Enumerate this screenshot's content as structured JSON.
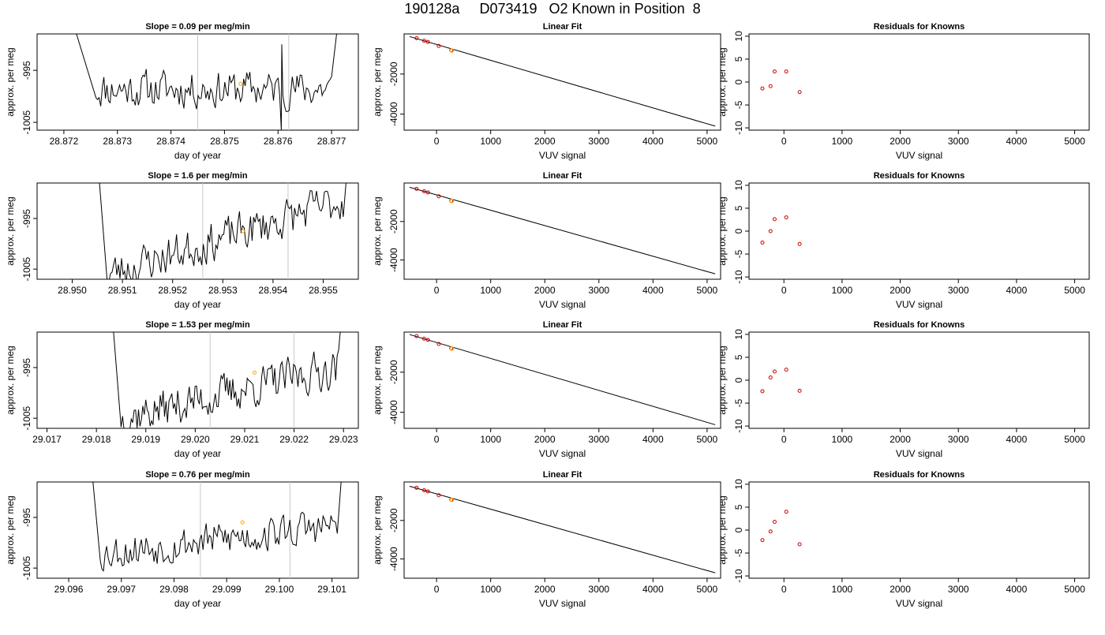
{
  "figure": {
    "title": "190128a     D073419   O2 Known in Position  8"
  },
  "colors": {
    "trace": "#000000",
    "highlight_point": "#ffa500",
    "known_points": "#cc0000",
    "marker_lines": "#c8c8c8",
    "frame": "#000000"
  },
  "chart_data": [
    {
      "type": "line",
      "row": 1,
      "panel": "time-series",
      "title": "Slope =  0.09  per meg/min",
      "xlabel": "day of year",
      "ylabel": "approx. per meg",
      "xlim": [
        28.8715,
        28.8775
      ],
      "ylim": [
        -1006.5,
        -988
      ],
      "x_ticks": [
        "28.872",
        "28.873",
        "28.874",
        "28.875",
        "28.876",
        "28.877"
      ],
      "x_tick_values": [
        28.872,
        28.873,
        28.874,
        28.875,
        28.876,
        28.877
      ],
      "y_ticks": [
        "-1005",
        "-995"
      ],
      "y_tick_values": [
        -1005,
        -995
      ],
      "vlines": [
        28.8745,
        28.8762
      ],
      "highlight": {
        "x": 28.8753,
        "y": -997.6
      },
      "trace": {
        "start_x": 28.8726,
        "end_x": 28.877,
        "base": -998.6,
        "drift_per_day": 0,
        "rise_x": 28.8717,
        "rise_y": -970,
        "tail_x": 28.8773,
        "tail_y": -970,
        "noise_amp": 2.0,
        "seed": 11,
        "spike": {
          "x": 28.87605,
          "low": -1006.5,
          "high": -990
        }
      }
    },
    {
      "type": "scatter",
      "row": 1,
      "panel": "linear-fit",
      "title": "Linear Fit",
      "xlabel": "VUV signal",
      "ylabel": "approx. per meg",
      "xlim": [
        -600,
        5250
      ],
      "ylim": [
        -4800,
        0
      ],
      "x_ticks": [
        "0",
        "1000",
        "2000",
        "3000",
        "4000",
        "5000"
      ],
      "x_tick_values": [
        0,
        1000,
        2000,
        3000,
        4000,
        5000
      ],
      "y_ticks": [
        "-4000",
        "-2000"
      ],
      "y_tick_values": [
        -4000,
        -2000
      ],
      "points": [
        {
          "x": -370,
          "y": -210
        },
        {
          "x": -230,
          "y": -340
        },
        {
          "x": -160,
          "y": -400
        },
        {
          "x": 40,
          "y": -600
        },
        {
          "x": 270,
          "y": -820
        }
      ],
      "highlight": {
        "x": 280,
        "y": -830
      },
      "fit_line": {
        "x": [
          -500,
          5150
        ],
        "y": [
          -130,
          -4600
        ]
      }
    },
    {
      "type": "scatter",
      "row": 1,
      "panel": "residuals",
      "title": "Residuals for Knowns",
      "xlabel": "VUV signal",
      "ylabel": "approx. per meg",
      "xlim": [
        -600,
        5250
      ],
      "ylim": [
        -10.5,
        10.5
      ],
      "x_ticks": [
        "0",
        "1000",
        "2000",
        "3000",
        "4000",
        "5000"
      ],
      "x_tick_values": [
        0,
        1000,
        2000,
        3000,
        4000,
        5000
      ],
      "y_ticks": [
        "-10",
        "-5",
        "0",
        "5",
        "10"
      ],
      "y_tick_values": [
        -10,
        -5,
        0,
        5,
        10
      ],
      "points": [
        {
          "x": -370,
          "y": -1.4
        },
        {
          "x": -230,
          "y": -0.9
        },
        {
          "x": -160,
          "y": 2.3
        },
        {
          "x": 40,
          "y": 2.3
        },
        {
          "x": 270,
          "y": -2.2
        }
      ]
    },
    {
      "type": "line",
      "row": 2,
      "panel": "time-series",
      "title": "Slope =  1.6  per meg/min",
      "xlabel": "day of year",
      "ylabel": "approx. per meg",
      "xlim": [
        28.9493,
        28.9557
      ],
      "ylim": [
        -1007,
        -988
      ],
      "x_ticks": [
        "28.950",
        "28.951",
        "28.952",
        "28.953",
        "28.954",
        "28.955"
      ],
      "x_tick_values": [
        28.95,
        28.951,
        28.952,
        28.953,
        28.954,
        28.955
      ],
      "y_ticks": [
        "-1005",
        "-995"
      ],
      "y_tick_values": [
        -1005,
        -995
      ],
      "vlines": [
        28.9526,
        28.9543
      ],
      "highlight": {
        "x": 28.9534,
        "y": -997.5
      },
      "trace": {
        "start_x": 28.9507,
        "end_x": 28.9554,
        "base": -1006,
        "drift_per_day": 3100,
        "rise_x": 28.9504,
        "rise_y": -970,
        "tail_x": 28.9556,
        "tail_y": -970,
        "noise_amp": 2.2,
        "seed": 23
      }
    },
    {
      "type": "scatter",
      "row": 2,
      "panel": "linear-fit",
      "title": "Linear Fit",
      "xlabel": "VUV signal",
      "ylabel": "approx. per meg",
      "xlim": [
        -600,
        5250
      ],
      "ylim": [
        -5000,
        0
      ],
      "x_ticks": [
        "0",
        "1000",
        "2000",
        "3000",
        "4000",
        "5000"
      ],
      "x_tick_values": [
        0,
        1000,
        2000,
        3000,
        4000,
        5000
      ],
      "y_ticks": [
        "-4000",
        "-2000"
      ],
      "y_tick_values": [
        -4000,
        -2000
      ],
      "points": [
        {
          "x": -370,
          "y": -300
        },
        {
          "x": -230,
          "y": -430
        },
        {
          "x": -160,
          "y": -490
        },
        {
          "x": 40,
          "y": -690
        },
        {
          "x": 270,
          "y": -920
        }
      ],
      "highlight": {
        "x": 280,
        "y": -930
      },
      "fit_line": {
        "x": [
          -500,
          5150
        ],
        "y": [
          -220,
          -4720
        ]
      }
    },
    {
      "type": "scatter",
      "row": 2,
      "panel": "residuals",
      "title": "Residuals for Knowns",
      "xlabel": "VUV signal",
      "ylabel": "approx. per meg",
      "xlim": [
        -600,
        5250
      ],
      "ylim": [
        -10.5,
        10.5
      ],
      "x_ticks": [
        "0",
        "1000",
        "2000",
        "3000",
        "4000",
        "5000"
      ],
      "x_tick_values": [
        0,
        1000,
        2000,
        3000,
        4000,
        5000
      ],
      "y_ticks": [
        "-10",
        "-5",
        "0",
        "5",
        "10"
      ],
      "y_tick_values": [
        -10,
        -5,
        0,
        5,
        10
      ],
      "points": [
        {
          "x": -370,
          "y": -2.5
        },
        {
          "x": -230,
          "y": 0.0
        },
        {
          "x": -160,
          "y": 2.6
        },
        {
          "x": 40,
          "y": 3.0
        },
        {
          "x": 270,
          "y": -2.8
        }
      ]
    },
    {
      "type": "line",
      "row": 3,
      "panel": "time-series",
      "title": "Slope =  1.53  per meg/min",
      "xlabel": "day of year",
      "ylabel": "approx. per meg",
      "xlim": [
        29.0168,
        29.0233
      ],
      "ylim": [
        -1007,
        -988
      ],
      "x_ticks": [
        "29.017",
        "29.018",
        "29.019",
        "29.020",
        "29.021",
        "29.022",
        "29.023"
      ],
      "x_tick_values": [
        29.017,
        29.018,
        29.019,
        29.02,
        29.021,
        29.022,
        29.023
      ],
      "y_ticks": [
        "-1005",
        "-995"
      ],
      "y_tick_values": [
        -1005,
        -995
      ],
      "vlines": [
        29.0203,
        29.022
      ],
      "highlight": {
        "x": 29.0212,
        "y": -996
      },
      "trace": {
        "start_x": 29.0185,
        "end_x": 29.0229,
        "base": -1005,
        "drift_per_day": 2300,
        "rise_x": 29.0182,
        "rise_y": -970,
        "tail_x": 29.0231,
        "tail_y": -970,
        "noise_amp": 2.2,
        "seed": 37
      }
    },
    {
      "type": "scatter",
      "row": 3,
      "panel": "linear-fit",
      "title": "Linear Fit",
      "xlabel": "VUV signal",
      "ylabel": "approx. per meg",
      "xlim": [
        -600,
        5250
      ],
      "ylim": [
        -4800,
        0
      ],
      "x_ticks": [
        "0",
        "1000",
        "2000",
        "3000",
        "4000",
        "5000"
      ],
      "x_tick_values": [
        0,
        1000,
        2000,
        3000,
        4000,
        5000
      ],
      "y_ticks": [
        "-4000",
        "-2000"
      ],
      "y_tick_values": [
        -4000,
        -2000
      ],
      "points": [
        {
          "x": -370,
          "y": -200
        },
        {
          "x": -230,
          "y": -330
        },
        {
          "x": -160,
          "y": -390
        },
        {
          "x": 40,
          "y": -590
        },
        {
          "x": 270,
          "y": -810
        }
      ],
      "highlight": {
        "x": 280,
        "y": -820
      },
      "fit_line": {
        "x": [
          -500,
          5150
        ],
        "y": [
          -120,
          -4620
        ]
      }
    },
    {
      "type": "scatter",
      "row": 3,
      "panel": "residuals",
      "title": "Residuals for Knowns",
      "xlabel": "VUV signal",
      "ylabel": "approx. per meg",
      "xlim": [
        -600,
        5250
      ],
      "ylim": [
        -10.5,
        10.5
      ],
      "x_ticks": [
        "0",
        "1000",
        "2000",
        "3000",
        "4000",
        "5000"
      ],
      "x_tick_values": [
        0,
        1000,
        2000,
        3000,
        4000,
        5000
      ],
      "y_ticks": [
        "-10",
        "-5",
        "0",
        "5",
        "10"
      ],
      "y_tick_values": [
        -10,
        -5,
        0,
        5,
        10
      ],
      "points": [
        {
          "x": -370,
          "y": -2.4
        },
        {
          "x": -230,
          "y": 0.6
        },
        {
          "x": -160,
          "y": 1.9
        },
        {
          "x": 40,
          "y": 2.3
        },
        {
          "x": 270,
          "y": -2.3
        }
      ]
    },
    {
      "type": "line",
      "row": 4,
      "panel": "time-series",
      "title": "Slope =  0.76  per meg/min",
      "xlabel": "day of year",
      "ylabel": "approx. per meg",
      "xlim": [
        29.0954,
        29.1015
      ],
      "ylim": [
        -1007,
        -988
      ],
      "x_ticks": [
        "29.096",
        "29.097",
        "29.098",
        "29.099",
        "29.100",
        "29.101"
      ],
      "x_tick_values": [
        29.096,
        29.097,
        29.098,
        29.099,
        29.1,
        29.101
      ],
      "y_ticks": [
        "-1005",
        "-995"
      ],
      "y_tick_values": [
        -1005,
        -995
      ],
      "vlines": [
        29.0985,
        29.1002
      ],
      "highlight": {
        "x": 29.0993,
        "y": -996
      },
      "trace": {
        "start_x": 29.0966,
        "end_x": 29.1011,
        "base": -1002,
        "drift_per_day": 1200,
        "rise_x": 29.0963,
        "rise_y": -970,
        "tail_x": 29.1013,
        "tail_y": -970,
        "noise_amp": 2.0,
        "seed": 53
      }
    },
    {
      "type": "scatter",
      "row": 4,
      "panel": "linear-fit",
      "title": "Linear Fit",
      "xlabel": "VUV signal",
      "ylabel": "approx. per meg",
      "xlim": [
        -600,
        5250
      ],
      "ylim": [
        -5000,
        0
      ],
      "x_ticks": [
        "0",
        "1000",
        "2000",
        "3000",
        "4000",
        "5000"
      ],
      "x_tick_values": [
        0,
        1000,
        2000,
        3000,
        4000,
        5000
      ],
      "y_ticks": [
        "-4000",
        "-2000"
      ],
      "y_tick_values": [
        -4000,
        -2000
      ],
      "points": [
        {
          "x": -370,
          "y": -300
        },
        {
          "x": -230,
          "y": -430
        },
        {
          "x": -160,
          "y": -490
        },
        {
          "x": 40,
          "y": -690
        },
        {
          "x": 270,
          "y": -920
        }
      ],
      "highlight": {
        "x": 280,
        "y": -930
      },
      "fit_line": {
        "x": [
          -500,
          5150
        ],
        "y": [
          -220,
          -4720
        ]
      }
    },
    {
      "type": "scatter",
      "row": 4,
      "panel": "residuals",
      "title": "Residuals for Knowns",
      "xlabel": "VUV signal",
      "ylabel": "approx. per meg",
      "xlim": [
        -600,
        5250
      ],
      "ylim": [
        -10.5,
        10.5
      ],
      "x_ticks": [
        "0",
        "1000",
        "2000",
        "3000",
        "4000",
        "5000"
      ],
      "x_tick_values": [
        0,
        1000,
        2000,
        3000,
        4000,
        5000
      ],
      "y_ticks": [
        "-10",
        "-5",
        "0",
        "5",
        "10"
      ],
      "y_tick_values": [
        -10,
        -5,
        0,
        5,
        10
      ],
      "points": [
        {
          "x": -370,
          "y": -2.2
        },
        {
          "x": -230,
          "y": -0.3
        },
        {
          "x": -160,
          "y": 1.8
        },
        {
          "x": 40,
          "y": 4.0
        },
        {
          "x": 270,
          "y": -3.1
        }
      ]
    }
  ]
}
